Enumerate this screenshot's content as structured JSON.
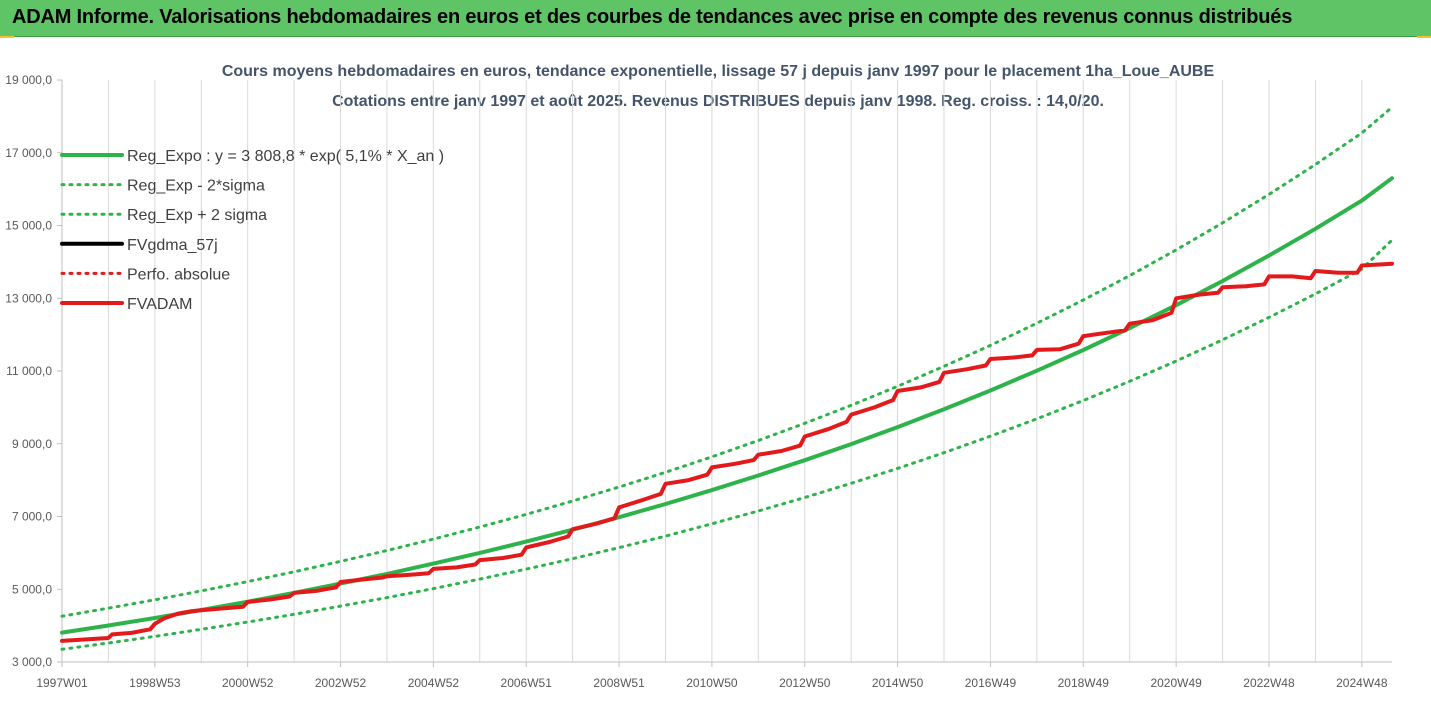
{
  "banner": {
    "title": "ADAM Informe. Valorisations hebdomadaires en euros et des courbes de tendances avec prise en compte des revenus connus distribués"
  },
  "chart_data": {
    "type": "line",
    "title": "Cours moyens hebdomadaires en euros, tendance exponentielle, lissage 57 j depuis janv 1997 pour le placement 1ha_Loue_AUBE",
    "subtitle": "Cotations entre janv 1997 et août 2025. Revenus DISTRIBUES depuis janv 1998. Reg. croiss. : 14,0/20.",
    "x_ticks": [
      "1997W01",
      "1998W53",
      "2000W52",
      "2002W52",
      "2004W52",
      "2006W51",
      "2008W51",
      "2010W50",
      "2012W50",
      "2014W50",
      "2016W49",
      "2018W49",
      "2020W49",
      "2022W48",
      "2024W48"
    ],
    "x_tick_years": [
      1997.0,
      1999.0,
      2001.0,
      2003.0,
      2005.0,
      2007.0,
      2009.0,
      2011.0,
      2013.0,
      2015.0,
      2017.0,
      2019.0,
      2021.0,
      2023.0,
      2025.0
    ],
    "xlim": [
      1997.0,
      2025.65
    ],
    "ylim": [
      3000,
      19000
    ],
    "y_ticks": [
      3000,
      5000,
      7000,
      9000,
      11000,
      13000,
      15000,
      17000,
      19000
    ],
    "y_tick_labels": [
      "3 000,0",
      "5 000,0",
      "7 000,0",
      "9 000,0",
      "11 000,0",
      "13 000,0",
      "15 000,0",
      "17 000,0",
      "19 000,0"
    ],
    "grid": {
      "vertical": true,
      "horizontal": false
    },
    "legend_position": "top-left",
    "series": [
      {
        "name": "Reg_Expo : y = 3 808,8 * exp( 5,1% *  X_an )",
        "style": "solid",
        "color": "#2db34a",
        "x": [
          1997.0,
          1998.0,
          1999.0,
          2000.0,
          2001.0,
          2002.0,
          2003.0,
          2004.0,
          2005.0,
          2006.0,
          2007.0,
          2008.0,
          2009.0,
          2010.0,
          2011.0,
          2012.0,
          2013.0,
          2014.0,
          2015.0,
          2016.0,
          2017.0,
          2018.0,
          2019.0,
          2020.0,
          2021.0,
          2022.0,
          2023.0,
          2024.0,
          2025.0,
          2025.65
        ],
        "y": [
          3809,
          4004,
          4210,
          4430,
          4658,
          4900,
          5155,
          5422,
          5704,
          6000,
          6310,
          6638,
          6982,
          7344,
          7725,
          8126,
          8548,
          8991,
          9457,
          9948,
          10464,
          11007,
          11578,
          12179,
          12810,
          13475,
          14174,
          14910,
          15684,
          16300
        ]
      },
      {
        "name": "Reg_Exp - 2*sigma",
        "style": "dotted",
        "color": "#2db34a",
        "x": [
          1997.0,
          1998.0,
          1999.0,
          2000.0,
          2001.0,
          2002.0,
          2003.0,
          2004.0,
          2005.0,
          2006.0,
          2007.0,
          2008.0,
          2009.0,
          2010.0,
          2011.0,
          2012.0,
          2013.0,
          2014.0,
          2015.0,
          2016.0,
          2017.0,
          2018.0,
          2019.0,
          2020.0,
          2021.0,
          2022.0,
          2023.0,
          2024.0,
          2025.0,
          2025.65
        ],
        "y": [
          3350,
          3523,
          3705,
          3898,
          4099,
          4312,
          4536,
          4771,
          5019,
          5280,
          5553,
          5841,
          6144,
          6462,
          6798,
          7151,
          7522,
          7912,
          8322,
          8754,
          9208,
          9686,
          10189,
          10717,
          11273,
          11858,
          12473,
          13120,
          13802,
          14600
        ]
      },
      {
        "name": "Reg_Exp + 2 sigma",
        "style": "dotted",
        "color": "#2db34a",
        "x": [
          1997.0,
          1998.0,
          1999.0,
          2000.0,
          2001.0,
          2002.0,
          2003.0,
          2004.0,
          2005.0,
          2006.0,
          2007.0,
          2008.0,
          2009.0,
          2010.0,
          2011.0,
          2012.0,
          2013.0,
          2014.0,
          2015.0,
          2016.0,
          2017.0,
          2018.0,
          2019.0,
          2020.0,
          2021.0,
          2022.0,
          2023.0,
          2024.0,
          2025.0,
          2025.65
        ],
        "y": [
          4260,
          4479,
          4710,
          4955,
          5210,
          5481,
          5766,
          6065,
          6380,
          6711,
          7058,
          7425,
          7810,
          8215,
          8641,
          9090,
          9561,
          10058,
          10579,
          11128,
          11705,
          12313,
          12951,
          13624,
          14330,
          15073,
          15855,
          16678,
          17543,
          18250
        ]
      },
      {
        "name": "FVgdma_57j",
        "style": "solid",
        "color": "#000000",
        "x": [],
        "y": []
      },
      {
        "name": "Perfo. absolue",
        "style": "dotted",
        "color": "#e31a1c",
        "x": [],
        "y": []
      },
      {
        "name": "FVADAM",
        "style": "solid",
        "color": "#e31a1c",
        "x": [
          1997.0,
          1998.0,
          1998.08,
          1998.5,
          1998.9,
          1999.0,
          1999.2,
          1999.5,
          1999.8,
          2000.0,
          2000.5,
          2000.9,
          2001.0,
          2001.5,
          2001.9,
          2002.0,
          2002.5,
          2002.9,
          2003.0,
          2003.5,
          2003.9,
          2004.0,
          2004.5,
          2004.9,
          2005.0,
          2005.5,
          2005.9,
          2006.0,
          2006.5,
          2006.9,
          2007.0,
          2007.5,
          2007.9,
          2008.0,
          2008.5,
          2008.9,
          2009.0,
          2009.5,
          2009.9,
          2010.0,
          2010.5,
          2010.9,
          2011.0,
          2011.5,
          2011.9,
          2012.0,
          2012.5,
          2012.9,
          2013.0,
          2013.5,
          2013.9,
          2014.0,
          2014.5,
          2014.9,
          2015.0,
          2015.5,
          2015.9,
          2016.0,
          2016.5,
          2016.9,
          2017.0,
          2017.5,
          2017.9,
          2018.0,
          2018.5,
          2018.9,
          2019.0,
          2019.5,
          2019.9,
          2020.0,
          2020.5,
          2020.9,
          2021.0,
          2021.5,
          2021.9,
          2022.0,
          2022.5,
          2022.9,
          2023.0,
          2023.5,
          2023.9,
          2024.0,
          2024.5,
          2024.9,
          2025.0,
          2025.65
        ],
        "y": [
          3580,
          3660,
          3760,
          3800,
          3900,
          4050,
          4200,
          4330,
          4400,
          4420,
          4480,
          4520,
          4650,
          4720,
          4800,
          4900,
          4960,
          5050,
          5200,
          5270,
          5320,
          5360,
          5400,
          5440,
          5560,
          5600,
          5680,
          5800,
          5860,
          5950,
          6150,
          6300,
          6450,
          6650,
          6800,
          6950,
          7250,
          7450,
          7620,
          7900,
          8000,
          8150,
          8350,
          8450,
          8550,
          8700,
          8800,
          8950,
          9200,
          9400,
          9600,
          9800,
          10000,
          10200,
          10450,
          10550,
          10700,
          10950,
          11050,
          11150,
          11330,
          11370,
          11430,
          11580,
          11600,
          11750,
          11960,
          12050,
          12120,
          12300,
          12400,
          12600,
          13000,
          13100,
          13150,
          13300,
          13330,
          13380,
          13600,
          13600,
          13550,
          13750,
          13700,
          13700,
          13900,
          13950
        ]
      }
    ]
  }
}
